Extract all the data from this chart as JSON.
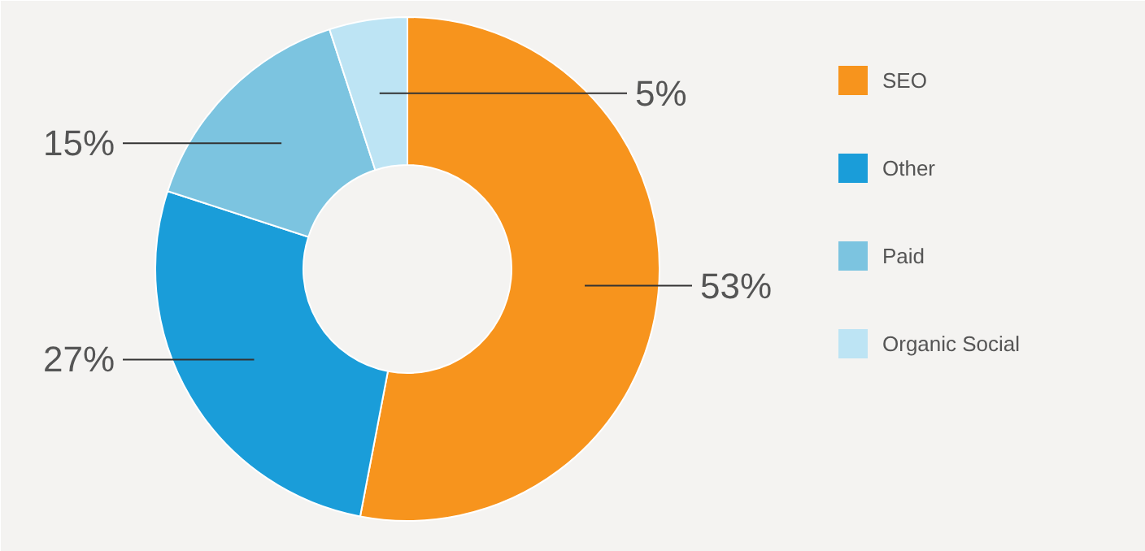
{
  "chart_data": {
    "type": "donut",
    "categories": [
      "SEO",
      "Other",
      "Paid",
      "Organic Social"
    ],
    "values": [
      53,
      27,
      15,
      5
    ],
    "colors": [
      "#f7941d",
      "#1a9dd9",
      "#7cc4e0",
      "#bde4f4"
    ],
    "value_labels": [
      "53%",
      "27%",
      "15%",
      "5%"
    ],
    "legend": "right"
  }
}
